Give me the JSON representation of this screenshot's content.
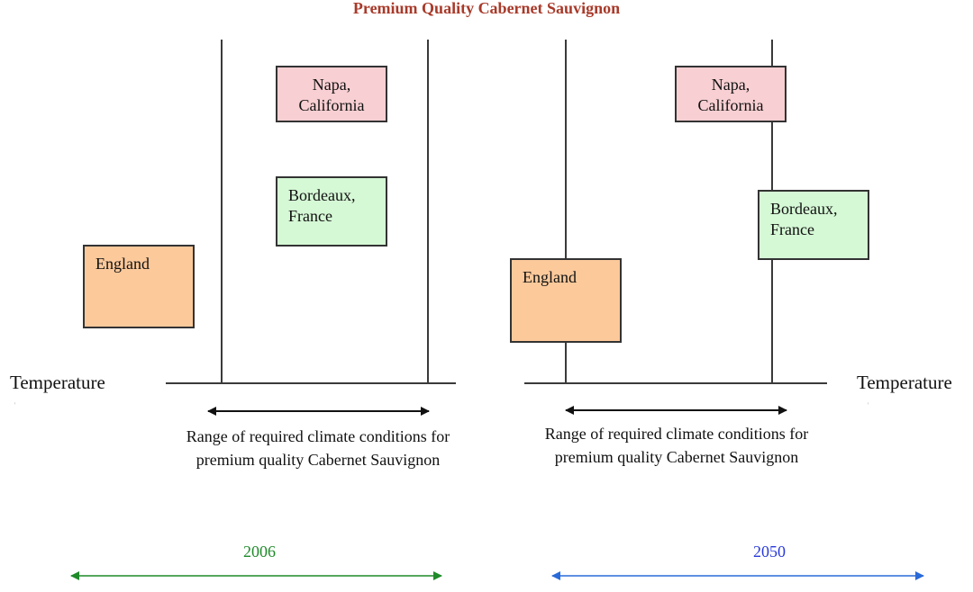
{
  "title": "Premium Quality Cabernet Sauvignon",
  "axis_label": "Temperature",
  "range_text": "Range of required climate conditions for premium quality Cabernet Sauvignon",
  "panels": [
    {
      "year": "2006",
      "year_color": "#1f8a2a",
      "regions": {
        "napa": {
          "line1": "Napa,",
          "line2": "California"
        },
        "bordeaux": {
          "line1": "Bordeaux,",
          "line2": "France"
        },
        "england": {
          "line1": "England"
        }
      }
    },
    {
      "year": "2050",
      "year_color": "#2a3ad8",
      "regions": {
        "napa": {
          "line1": "Napa,",
          "line2": "California"
        },
        "bordeaux": {
          "line1": "Bordeaux,",
          "line2": "France"
        },
        "england": {
          "line1": "England"
        }
      }
    }
  ],
  "colors": {
    "title": "#a83a2a",
    "napa_fill": "#f8cfd2",
    "bordeaux_fill": "#d5f8d5",
    "england_fill": "#fcc99b",
    "arrow_2006": "#1f8a2a",
    "arrow_2050": "#2a6ad8"
  }
}
